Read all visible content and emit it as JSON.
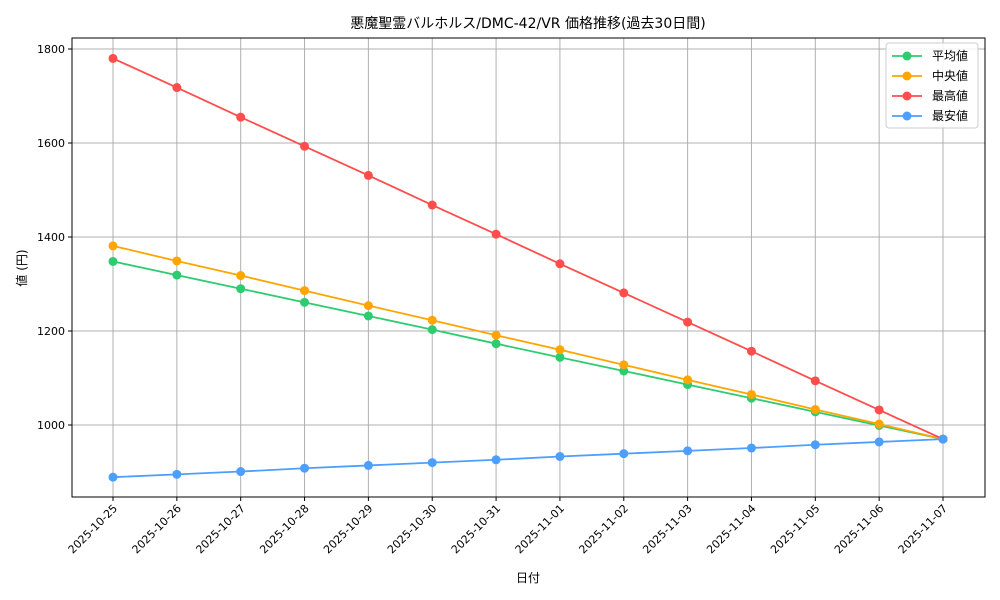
{
  "chart_data": {
    "type": "line",
    "title": "悪魔聖霊バルホルス/DMC-42/VR 価格推移(過去30日間)",
    "xlabel": "日付",
    "ylabel": "値 (円)",
    "x": [
      "2025-10-25",
      "2025-10-26",
      "2025-10-27",
      "2025-10-28",
      "2025-10-29",
      "2025-10-30",
      "2025-10-31",
      "2025-11-01",
      "2025-11-02",
      "2025-11-03",
      "2025-11-04",
      "2025-11-05",
      "2025-11-06",
      "2025-11-07"
    ],
    "ylim": [
      860,
      1825
    ],
    "yticks": [
      1000,
      1200,
      1400,
      1600,
      1800
    ],
    "grid": true,
    "legend_position": "upper right",
    "series": [
      {
        "name": "平均値",
        "color": "#2ecc71",
        "values": [
          1348,
          1319,
          1290,
          1261,
          1232,
          1203,
          1173,
          1144,
          1115,
          1086,
          1057,
          1028,
          999,
          970
        ]
      },
      {
        "name": "中央値",
        "color": "#ffa500",
        "values": [
          1381,
          1349,
          1318,
          1286,
          1254,
          1223,
          1191,
          1160,
          1128,
          1096,
          1065,
          1033,
          1002,
          970
        ]
      },
      {
        "name": "最高値",
        "color": "#ff4d4d",
        "values": [
          1780,
          1718,
          1655,
          1593,
          1531,
          1468,
          1406,
          1343,
          1281,
          1219,
          1157,
          1094,
          1032,
          970
        ]
      },
      {
        "name": "最安値",
        "color": "#4d9fff",
        "values": [
          889,
          895,
          901,
          908,
          914,
          920,
          926,
          933,
          939,
          945,
          951,
          958,
          964,
          970
        ]
      }
    ]
  }
}
